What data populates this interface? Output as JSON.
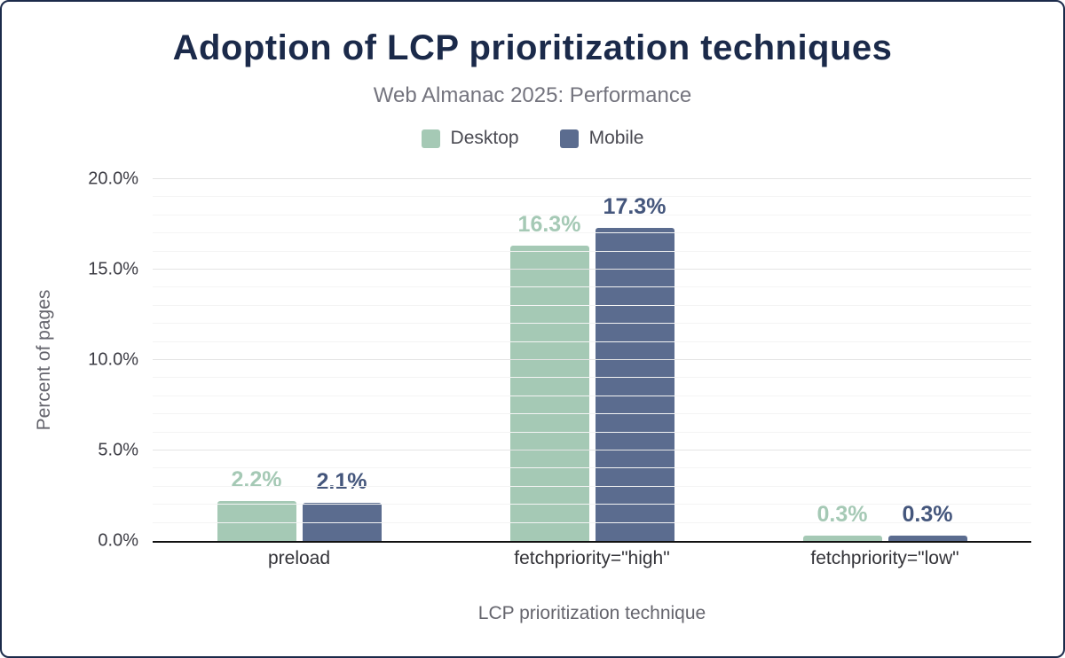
{
  "chart": {
    "title": "Adoption of LCP prioritization techniques",
    "subtitle": "Web Almanac 2025: Performance",
    "xlabel": "LCP prioritization technique",
    "ylabel": "Percent of pages"
  },
  "chart_data": {
    "type": "bar",
    "title": "Adoption of LCP prioritization techniques",
    "subtitle": "Web Almanac 2025: Performance",
    "xlabel": "LCP prioritization technique",
    "ylabel": "Percent of pages",
    "categories": [
      "preload",
      "fetchpriority=\"high\"",
      "fetchpriority=\"low\""
    ],
    "series": [
      {
        "name": "Desktop",
        "color": "#a5c9b5",
        "label_color": "#a5c9b5",
        "values": [
          2.2,
          16.3,
          0.3
        ],
        "labels": [
          "2.2%",
          "16.3%",
          "0.3%"
        ]
      },
      {
        "name": "Mobile",
        "color": "#5b6c8f",
        "label_color": "#44567c",
        "values": [
          2.1,
          17.3,
          0.3
        ],
        "labels": [
          "2.1%",
          "17.3%",
          "0.3%"
        ]
      }
    ],
    "ylim": [
      0,
      20
    ],
    "yticks": [
      0,
      5,
      10,
      15,
      20
    ],
    "ytick_labels": [
      "0.0%",
      "5.0%",
      "10.0%",
      "15.0%",
      "20.0%"
    ],
    "minor_grid_step": 1,
    "grid": true,
    "legend_position": "top"
  }
}
